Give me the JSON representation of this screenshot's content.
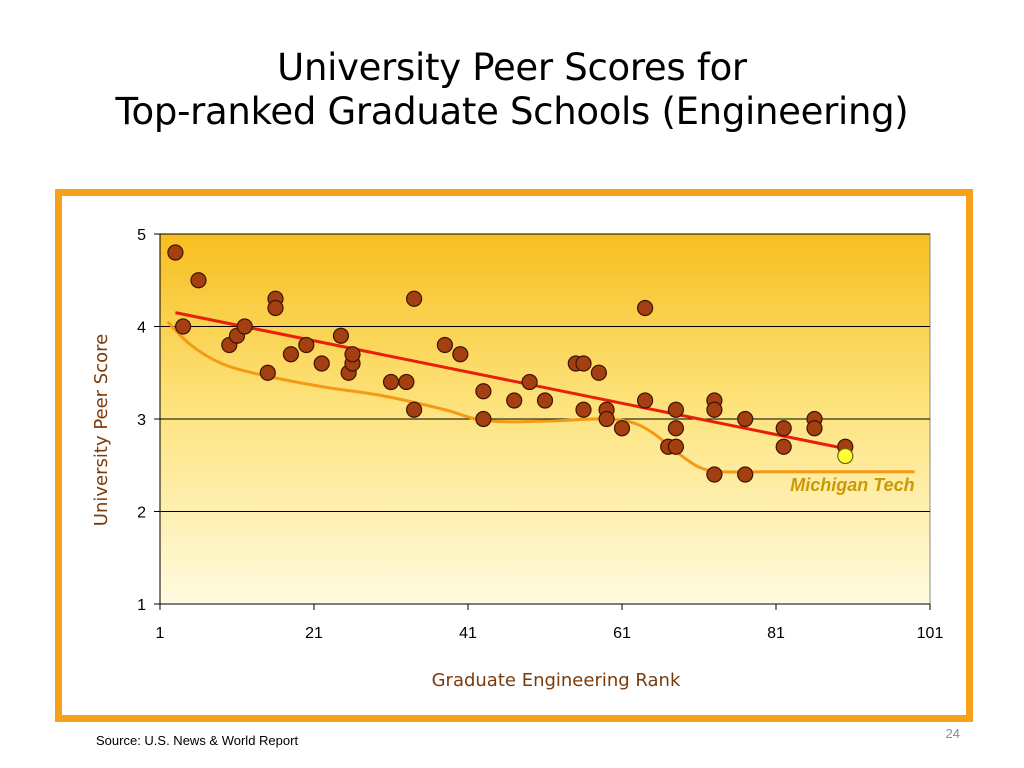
{
  "slide": {
    "title_line1": "University Peer Scores for",
    "title_line2": "Top-ranked Graduate Schools (Engineering)",
    "source": "Source:  U.S. News & World Report",
    "page_number": "24"
  },
  "colors": {
    "frame": "#f7a11a",
    "point_fill": "#a33f10",
    "highlight_fill": "#ffff33",
    "trend_line": "#e8200a",
    "smooth_line": "#f59a14",
    "axis_title": "#7a3b0c",
    "annotation": "#c99a06"
  },
  "chart_data": {
    "type": "scatter",
    "title": "",
    "xlabel": "Graduate Engineering Rank",
    "ylabel": "University Peer Score",
    "xlim": [
      1,
      101
    ],
    "ylim": [
      1,
      5
    ],
    "xticks": [
      "1",
      "21",
      "41",
      "61",
      "81",
      "101"
    ],
    "yticks": [
      "1",
      "2",
      "3",
      "4",
      "5"
    ],
    "grid": "horizontal",
    "background": "gradient yellow-to-pale",
    "series": [
      {
        "points": [
          [
            3,
            4.8
          ],
          [
            4,
            4.0
          ],
          [
            6,
            4.5
          ],
          [
            10,
            3.8
          ],
          [
            11,
            3.9
          ],
          [
            12,
            4.0
          ],
          [
            15,
            3.5
          ],
          [
            16,
            4.3
          ],
          [
            16,
            4.2
          ],
          [
            18,
            3.7
          ],
          [
            20,
            3.8
          ],
          [
            22,
            3.6
          ],
          [
            24.5,
            3.9
          ],
          [
            25.5,
            3.5
          ],
          [
            26,
            3.6
          ],
          [
            26,
            3.7
          ],
          [
            31,
            3.4
          ],
          [
            33,
            3.4
          ],
          [
            34,
            4.3
          ],
          [
            34,
            3.1
          ],
          [
            38,
            3.8
          ],
          [
            40,
            3.7
          ],
          [
            43,
            3.3
          ],
          [
            43,
            3.0
          ],
          [
            47,
            3.2
          ],
          [
            49,
            3.4
          ],
          [
            51,
            3.2
          ],
          [
            55,
            3.6
          ],
          [
            56,
            3.6
          ],
          [
            56,
            3.1
          ],
          [
            58,
            3.5
          ],
          [
            59,
            3.1
          ],
          [
            59,
            3.0
          ],
          [
            61,
            2.9
          ],
          [
            64,
            4.2
          ],
          [
            64,
            3.2
          ],
          [
            67,
            2.7
          ],
          [
            68,
            3.1
          ],
          [
            68,
            2.9
          ],
          [
            68,
            2.7
          ],
          [
            73,
            3.2
          ],
          [
            73,
            3.1
          ],
          [
            73,
            2.4
          ],
          [
            77,
            3.0
          ],
          [
            77,
            2.4
          ],
          [
            82,
            2.9
          ],
          [
            82,
            2.7
          ],
          [
            86,
            3.0
          ],
          [
            86,
            2.9
          ],
          [
            90,
            2.7
          ]
        ]
      },
      {
        "highlight": true,
        "points": [
          [
            90,
            2.6
          ]
        ]
      }
    ],
    "trend_line": {
      "from": [
        3,
        4.15
      ],
      "to": [
        90,
        2.68
      ]
    },
    "smooth_curve": [
      [
        2,
        4.05
      ],
      [
        5,
        3.8
      ],
      [
        9,
        3.6
      ],
      [
        14,
        3.48
      ],
      [
        22,
        3.35
      ],
      [
        30,
        3.25
      ],
      [
        38,
        3.1
      ],
      [
        42,
        3.0
      ],
      [
        46,
        2.97
      ],
      [
        52,
        2.98
      ],
      [
        58,
        3.0
      ],
      [
        62,
        2.97
      ],
      [
        65,
        2.85
      ],
      [
        68,
        2.65
      ],
      [
        71,
        2.48
      ],
      [
        74,
        2.43
      ],
      [
        80,
        2.43
      ],
      [
        88,
        2.43
      ],
      [
        99,
        2.43
      ]
    ],
    "annotations": [
      {
        "text": "Michigan Tech",
        "x": 99,
        "y": 2.22,
        "anchor": "end"
      }
    ]
  }
}
